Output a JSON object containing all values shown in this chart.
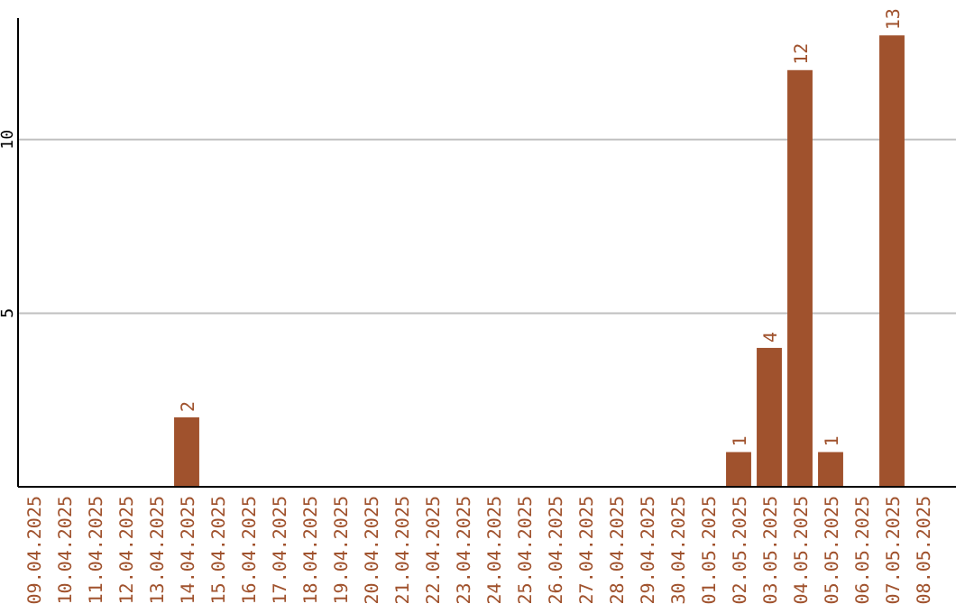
{
  "chart_data": {
    "type": "bar",
    "categories": [
      "09.04.2025",
      "10.04.2025",
      "11.04.2025",
      "12.04.2025",
      "13.04.2025",
      "14.04.2025",
      "15.04.2025",
      "16.04.2025",
      "17.04.2025",
      "18.04.2025",
      "19.04.2025",
      "20.04.2025",
      "21.04.2025",
      "22.04.2025",
      "23.04.2025",
      "24.04.2025",
      "25.04.2025",
      "26.04.2025",
      "27.04.2025",
      "28.04.2025",
      "29.04.2025",
      "30.04.2025",
      "01.05.2025",
      "02.05.2025",
      "03.05.2025",
      "04.05.2025",
      "05.05.2025",
      "06.05.2025",
      "07.05.2025",
      "08.05.2025"
    ],
    "values": [
      0,
      0,
      0,
      0,
      0,
      2,
      0,
      0,
      0,
      0,
      0,
      0,
      0,
      0,
      0,
      0,
      0,
      0,
      0,
      0,
      0,
      0,
      0,
      1,
      4,
      12,
      1,
      0,
      13,
      0
    ],
    "value_labels": [
      null,
      null,
      null,
      null,
      null,
      "2",
      null,
      null,
      null,
      null,
      null,
      null,
      null,
      null,
      null,
      null,
      null,
      null,
      null,
      null,
      null,
      null,
      null,
      "1",
      "4",
      "12",
      "1",
      null,
      "13",
      null
    ],
    "color": "#a0522d",
    "ylim": [
      0,
      13.5
    ],
    "yticks": [
      5,
      10
    ],
    "grid": "y"
  }
}
